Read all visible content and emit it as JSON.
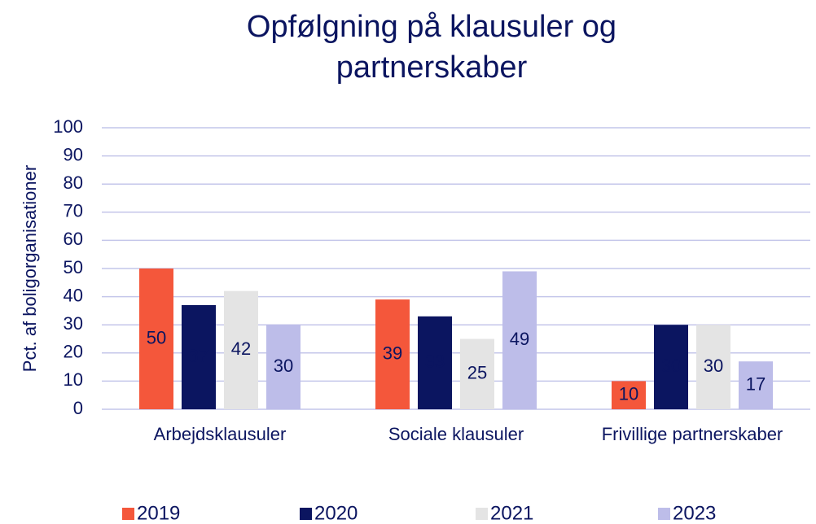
{
  "chart_data": {
    "type": "bar",
    "title": "Opfølgning på klausuler og partnerskaber",
    "y_label": "Pct. af boligorganisationer",
    "categories": [
      "Arbejdsklausuler",
      "Sociale klausuler",
      "Frivillige partnerskaber"
    ],
    "series": [
      {
        "name": "2019",
        "color": "#f4573b",
        "values": [
          50,
          39,
          10
        ]
      },
      {
        "name": "2020",
        "color": "#0b1560",
        "values": [
          37,
          33,
          30
        ]
      },
      {
        "name": "2021",
        "color": "#e4e4e4",
        "values": [
          42,
          25,
          30
        ]
      },
      {
        "name": "2023",
        "color": "#bdbde9",
        "values": [
          30,
          49,
          17
        ]
      }
    ],
    "ylim": [
      0,
      100
    ],
    "yticks": [
      0,
      10,
      20,
      30,
      40,
      50,
      60,
      70,
      80,
      90,
      100
    ],
    "grid": true,
    "legend": "bottom"
  }
}
